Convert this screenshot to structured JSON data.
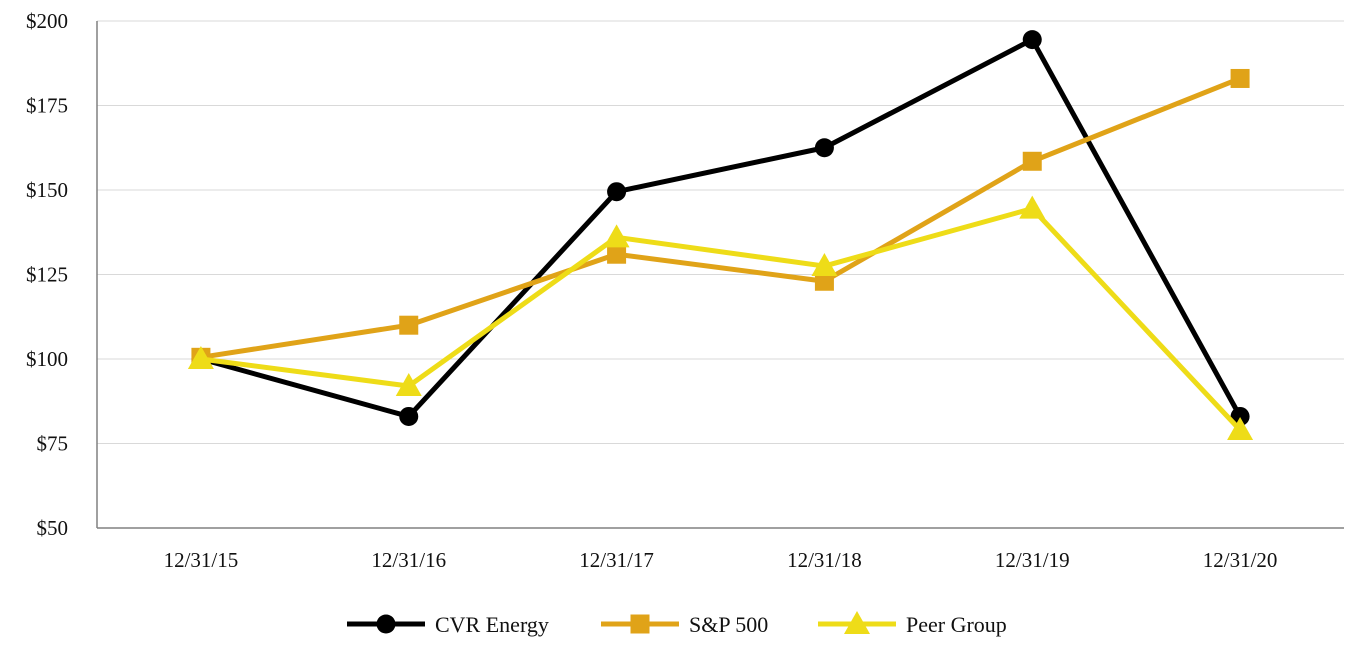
{
  "chart_data": {
    "type": "line",
    "title": "",
    "xlabel": "",
    "ylabel": "",
    "categories": [
      "12/31/15",
      "12/31/16",
      "12/31/17",
      "12/31/18",
      "12/31/19",
      "12/31/20"
    ],
    "ylim": [
      50,
      200
    ],
    "y_ticks": [
      50,
      75,
      100,
      125,
      150,
      175,
      200
    ],
    "y_tick_labels": [
      "$50",
      "$75",
      "$100",
      "$125",
      "$150",
      "$175",
      "$200"
    ],
    "grid": true,
    "legend_position": "bottom",
    "series": [
      {
        "name": "CVR Energy",
        "values": [
          100,
          83,
          149.5,
          162.5,
          194.5,
          83
        ],
        "color": "#000000",
        "marker": "circle"
      },
      {
        "name": "S&P 500",
        "values": [
          100.5,
          110,
          131,
          123,
          158.5,
          183
        ],
        "color": "#E0A318",
        "marker": "square"
      },
      {
        "name": "Peer Group",
        "values": [
          100,
          92,
          136,
          127.5,
          144.5,
          79
        ],
        "color": "#EEDC18",
        "marker": "triangle"
      }
    ]
  }
}
